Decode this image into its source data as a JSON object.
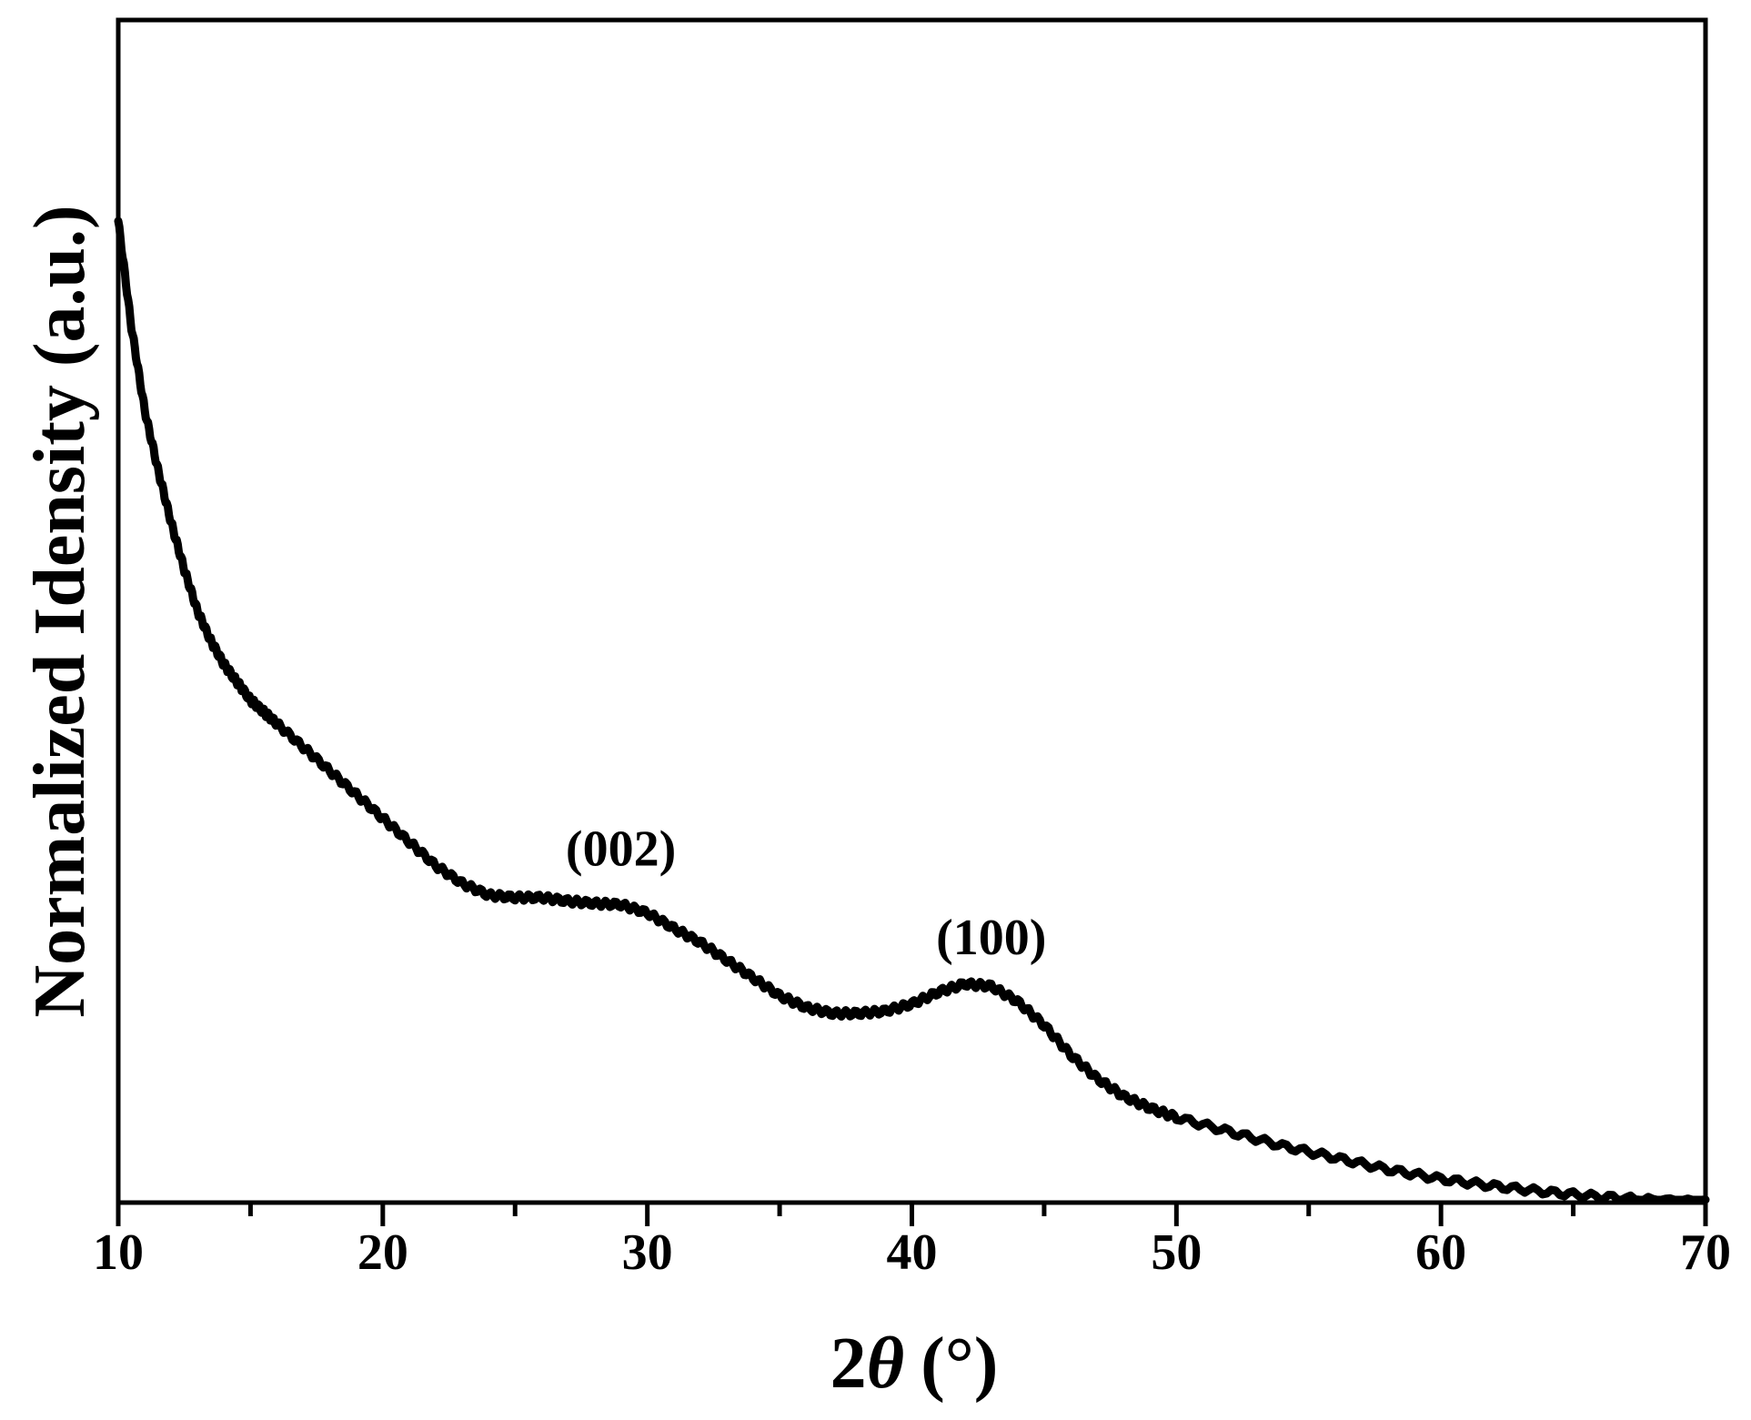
{
  "chart_data": {
    "type": "line",
    "title": "",
    "xlabel": "2θ (°)",
    "xlabel_parts": {
      "number": "2",
      "symbol": "θ",
      "unit": "(°)"
    },
    "ylabel": "Normalized Idensity (a.u.)",
    "xlim": [
      10,
      70
    ],
    "ylim": [
      0,
      1
    ],
    "x_ticks": [
      10,
      20,
      30,
      40,
      50,
      60,
      70
    ],
    "x_tick_labels": [
      "10",
      "20",
      "30",
      "40",
      "50",
      "60",
      "70"
    ],
    "y_ticks_labeled": false,
    "grid": false,
    "legend": "none",
    "line_color": "#000000",
    "series": [
      {
        "x": [
          10,
          10.5,
          11,
          11.5,
          12,
          12.5,
          13,
          13.5,
          14,
          14.5,
          15,
          15.5,
          16,
          17,
          18,
          19,
          20,
          21,
          22,
          23,
          24,
          25,
          26,
          27,
          28,
          29,
          30,
          31,
          32,
          33,
          34,
          35,
          36,
          37,
          38,
          39,
          40,
          41,
          42,
          43,
          44,
          45,
          46,
          47,
          48,
          49,
          50,
          52,
          54,
          56,
          58,
          60,
          62,
          64,
          66,
          68,
          70
        ],
        "y": [
          0.83,
          0.74,
          0.67,
          0.62,
          0.575,
          0.535,
          0.5,
          0.475,
          0.455,
          0.44,
          0.425,
          0.415,
          0.405,
          0.385,
          0.365,
          0.345,
          0.325,
          0.305,
          0.285,
          0.27,
          0.26,
          0.258,
          0.258,
          0.255,
          0.253,
          0.252,
          0.245,
          0.232,
          0.22,
          0.205,
          0.19,
          0.175,
          0.165,
          0.16,
          0.16,
          0.162,
          0.168,
          0.178,
          0.185,
          0.183,
          0.17,
          0.15,
          0.125,
          0.105,
          0.09,
          0.08,
          0.072,
          0.06,
          0.048,
          0.038,
          0.028,
          0.02,
          0.014,
          0.009,
          0.005,
          0.002,
          0.0
        ]
      }
    ],
    "annotations": [
      {
        "text": "(002)",
        "x": 29,
        "y": 0.285
      },
      {
        "text": "(100)",
        "x": 43,
        "y": 0.21
      }
    ]
  }
}
